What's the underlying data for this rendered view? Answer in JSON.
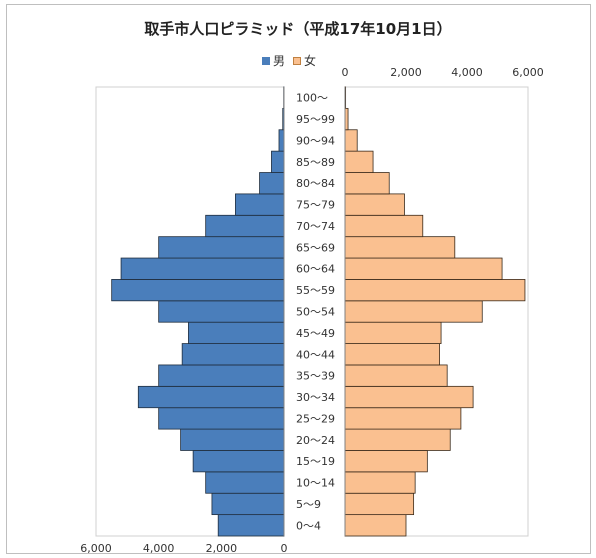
{
  "chart_data": {
    "type": "bar",
    "title": "取手市人口ピラミッド（平成17年10月1日）",
    "categories": [
      "0～4",
      "5～9",
      "10～14",
      "15～19",
      "20～24",
      "25～29",
      "30～34",
      "35～39",
      "40～44",
      "45～49",
      "50～54",
      "55～59",
      "60～64",
      "65～69",
      "70～74",
      "75～79",
      "80～84",
      "85～89",
      "90～94",
      "95～99",
      "100～"
    ],
    "series": [
      {
        "name": "男",
        "color": "#4a7ebb",
        "values": [
          2100,
          2300,
          2500,
          2900,
          3300,
          4000,
          4650,
          4000,
          3250,
          3050,
          4000,
          5500,
          5200,
          4000,
          2500,
          1550,
          780,
          400,
          160,
          40,
          10
        ]
      },
      {
        "name": "女",
        "color": "#fac090",
        "values": [
          2000,
          2250,
          2300,
          2700,
          3450,
          3800,
          4200,
          3350,
          3100,
          3150,
          4500,
          5900,
          5150,
          3600,
          2550,
          1950,
          1450,
          920,
          400,
          100,
          20
        ]
      }
    ],
    "left_axis": {
      "ticks": [
        6000,
        4000,
        2000,
        0
      ],
      "tick_labels": [
        "6,000",
        "4,000",
        "2,000",
        "0"
      ]
    },
    "right_axis": {
      "ticks": [
        0,
        2000,
        4000,
        6000
      ],
      "tick_labels": [
        "0",
        "2,000",
        "4,000",
        "6,000"
      ]
    },
    "xlim": [
      0,
      6000
    ],
    "legend_position": "top-center",
    "grid": false
  }
}
